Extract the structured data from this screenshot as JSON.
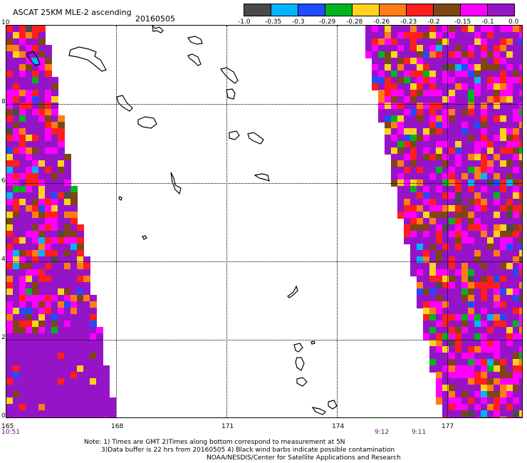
{
  "header": {
    "product": "ASCAT 25KM MLE-2 ascending",
    "date": "20160505"
  },
  "colorbar": {
    "colors": [
      "#4a4a4a",
      "#00b4ff",
      "#1f4dff",
      "#00b41e",
      "#ffd21e",
      "#ff7d14",
      "#ff1e1e",
      "#7d4614",
      "#ff00ff",
      "#9614c8"
    ],
    "labels": [
      "-1.0",
      "-0.35",
      "-0.3",
      "-0.29",
      "-0.28",
      "-0.26",
      "-0.23",
      "-0.2",
      "-0.15",
      "-0.1",
      "0.0"
    ]
  },
  "axes": {
    "lat_ticks": [
      "10",
      "8",
      "6",
      "4",
      "2",
      "0"
    ],
    "lon_ticks": [
      "165",
      "168",
      "171",
      "174",
      "177"
    ],
    "lat_range": [
      0,
      10
    ],
    "lon_range": [
      165,
      179
    ]
  },
  "times": {
    "left": "10:51",
    "right_a": "9:12",
    "right_b": "9:11"
  },
  "notes": {
    "line1": "Note: 1) Times are GMT 2)Times along bottom correspond to measurement at 5N",
    "line2": "3)Data buffer is 22 hrs from 20160505 4) Black wind barbs indicate possible contamination",
    "line3": "NOAA/NESDIS/Center for Satellite Applications and Research"
  }
}
